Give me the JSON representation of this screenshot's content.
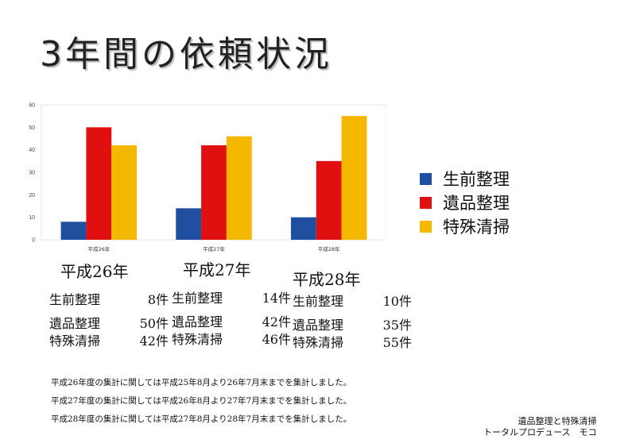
{
  "title": "3年間の依頼状況",
  "chart_data": {
    "type": "bar",
    "categories": [
      "平成26年",
      "平成27年",
      "平成28年"
    ],
    "series": [
      {
        "name": "生前整理",
        "values": [
          8,
          14,
          10
        ],
        "color": "#1f4f9e"
      },
      {
        "name": "遺品整理",
        "values": [
          50,
          42,
          35
        ],
        "color": "#e01010"
      },
      {
        "name": "特殊清掃",
        "values": [
          42,
          46,
          55
        ],
        "color": "#f5b800"
      }
    ],
    "ylim": [
      0,
      60
    ],
    "yticks": [
      "0",
      "10",
      "20",
      "30",
      "40",
      "50",
      "60"
    ],
    "grid": false,
    "legend": "right"
  },
  "summary": [
    {
      "year": "平成26年",
      "rows": [
        {
          "category": "生前整理",
          "count": "8件"
        },
        {
          "category": "遺品整理",
          "count": "50件"
        },
        {
          "category": "特殊清掃",
          "count": "42件"
        }
      ]
    },
    {
      "year": "平成27年",
      "rows": [
        {
          "category": "生前整理",
          "count": "14件"
        },
        {
          "category": "遺品整理",
          "count": "42件"
        },
        {
          "category": "特殊清掃",
          "count": "46件"
        }
      ]
    },
    {
      "year": "平成28年",
      "rows": [
        {
          "category": "生前整理",
          "count": "10件"
        },
        {
          "category": "遺品整理",
          "count": "35件"
        },
        {
          "category": "特殊清掃",
          "count": "55件"
        }
      ]
    }
  ],
  "notes": [
    "平成26年度の集計に関しては平成25年8月より26年7月末までを集計しました。",
    "平成27年度の集計に関しては平成26年8月より27年7月末までを集計しました。",
    "平成28年度の集計に関しては平成27年8月より28年7月末までを集計しました。"
  ],
  "footer": {
    "line1": "遺品整理と特殊清掃",
    "line2": "トータルプロデュース　モコ"
  }
}
